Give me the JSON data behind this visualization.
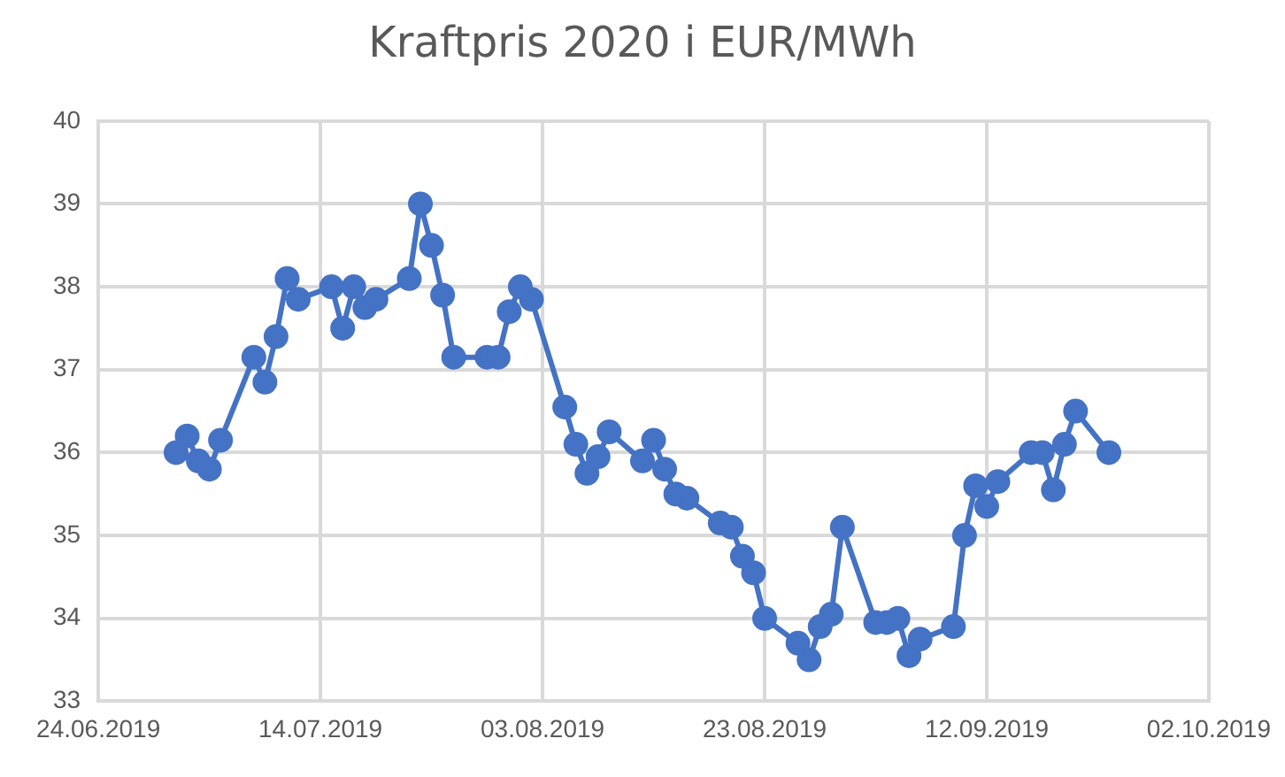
{
  "chart_data": {
    "type": "line",
    "title": "Kraftpris 2020 i EUR/MWh",
    "x": [
      "2019-07-01",
      "2019-07-02",
      "2019-07-03",
      "2019-07-04",
      "2019-07-05",
      "2019-07-08",
      "2019-07-09",
      "2019-07-10",
      "2019-07-11",
      "2019-07-12",
      "2019-07-15",
      "2019-07-16",
      "2019-07-17",
      "2019-07-18",
      "2019-07-19",
      "2019-07-22",
      "2019-07-23",
      "2019-07-24",
      "2019-07-25",
      "2019-07-26",
      "2019-07-29",
      "2019-07-30",
      "2019-07-31",
      "2019-08-01",
      "2019-08-02",
      "2019-08-05",
      "2019-08-06",
      "2019-08-07",
      "2019-08-08",
      "2019-08-09",
      "2019-08-12",
      "2019-08-13",
      "2019-08-14",
      "2019-08-15",
      "2019-08-16",
      "2019-08-19",
      "2019-08-20",
      "2019-08-21",
      "2019-08-22",
      "2019-08-23",
      "2019-08-26",
      "2019-08-27",
      "2019-08-28",
      "2019-08-29",
      "2019-08-30",
      "2019-09-02",
      "2019-09-03",
      "2019-09-04",
      "2019-09-05",
      "2019-09-06",
      "2019-09-09",
      "2019-09-10",
      "2019-09-11",
      "2019-09-12",
      "2019-09-13",
      "2019-09-16",
      "2019-09-17",
      "2019-09-18",
      "2019-09-19",
      "2019-09-20",
      "2019-09-23"
    ],
    "series": [
      {
        "color": "#4472c4",
        "values": [
          36.0,
          36.2,
          35.9,
          35.8,
          36.15,
          37.15,
          36.85,
          37.4,
          38.1,
          37.85,
          38.0,
          37.5,
          38.0,
          37.75,
          37.85,
          38.1,
          39.0,
          38.5,
          37.9,
          37.15,
          37.15,
          37.15,
          37.7,
          38.0,
          37.85,
          36.55,
          36.1,
          35.75,
          35.95,
          36.25,
          35.9,
          36.15,
          35.8,
          35.5,
          35.45,
          35.15,
          35.1,
          34.75,
          34.55,
          34.0,
          33.7,
          33.5,
          33.9,
          34.05,
          35.1,
          33.95,
          33.95,
          34.0,
          33.55,
          33.75,
          33.9,
          35.0,
          35.6,
          35.35,
          35.65,
          36.0,
          36.0,
          35.55,
          36.1,
          36.5,
          36.0
        ]
      }
    ],
    "xlim": [
      "2019-06-24",
      "2019-10-02"
    ],
    "xticks": [
      {
        "value": "2019-06-24",
        "label": "24.06.2019"
      },
      {
        "value": "2019-07-14",
        "label": "14.07.2019"
      },
      {
        "value": "2019-08-03",
        "label": "03.08.2019"
      },
      {
        "value": "2019-08-23",
        "label": "23.08.2019"
      },
      {
        "value": "2019-09-12",
        "label": "12.09.2019"
      },
      {
        "value": "2019-10-02",
        "label": "02.10.2019"
      }
    ],
    "ylim": [
      33,
      40
    ],
    "yticks": [
      33,
      34,
      35,
      36,
      37,
      38,
      39,
      40
    ],
    "grid": true,
    "legend": false,
    "marker": "circle",
    "line_style": "solid"
  }
}
